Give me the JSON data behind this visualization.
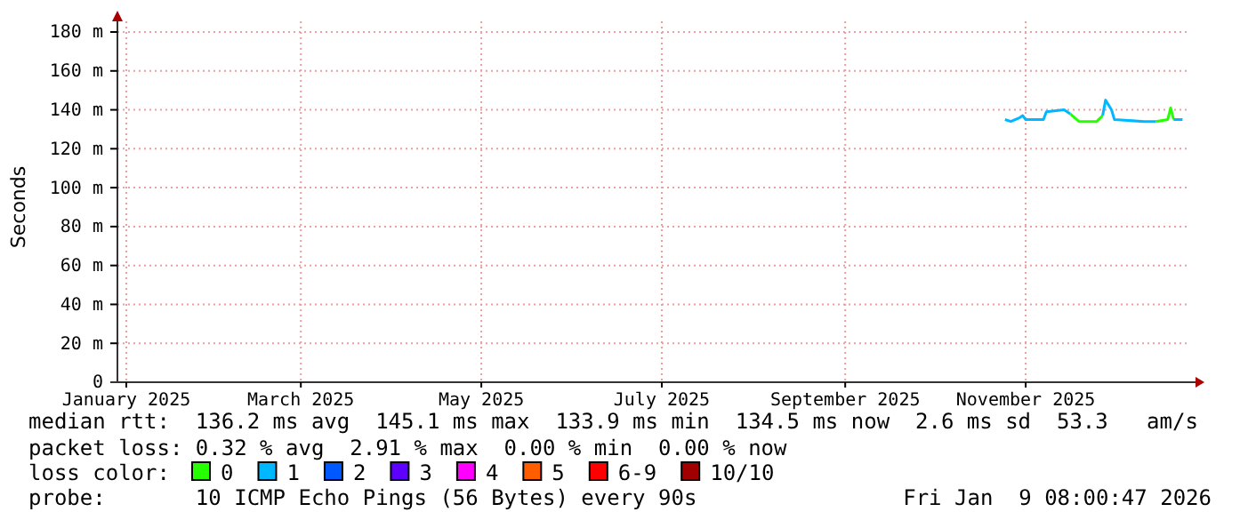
{
  "chart_data": {
    "type": "line",
    "ylabel": "Seconds",
    "x": [
      "2025-10-25",
      "2025-10-27",
      "2025-10-30",
      "2025-10-31",
      "2025-11-01",
      "2025-11-07",
      "2025-11-08",
      "2025-11-14",
      "2025-11-16",
      "2025-11-19",
      "2025-11-25",
      "2025-11-27",
      "2025-11-28",
      "2025-11-30",
      "2025-12-01",
      "2025-12-11",
      "2025-12-15",
      "2025-12-19",
      "2025-12-20",
      "2025-12-21",
      "2025-12-24"
    ],
    "series": [
      {
        "name": "0",
        "color": "#26ff00",
        "values": [
          null,
          null,
          null,
          null,
          null,
          null,
          null,
          null,
          138,
          134,
          134,
          137,
          null,
          null,
          null,
          null,
          134,
          135,
          141,
          135,
          null
        ]
      },
      {
        "name": "1",
        "color": "#00b8ff",
        "values": [
          135,
          134,
          136,
          137,
          135,
          135,
          139,
          140,
          138,
          null,
          null,
          137,
          145,
          140,
          135,
          134,
          134,
          null,
          null,
          135,
          135
        ]
      },
      {
        "name": "2",
        "color": "#0059ff",
        "values": [
          null,
          null,
          null,
          null,
          null,
          null,
          null,
          null,
          null,
          null,
          null,
          null,
          null,
          null,
          null,
          null,
          null,
          null,
          null,
          null,
          null
        ]
      },
      {
        "name": "3",
        "color": "#5e00ff",
        "values": [
          null,
          null,
          null,
          null,
          null,
          null,
          null,
          null,
          null,
          null,
          null,
          null,
          null,
          null,
          null,
          null,
          null,
          null,
          null,
          null,
          null
        ]
      },
      {
        "name": "4",
        "color": "#ff00ff",
        "values": [
          null,
          null,
          null,
          null,
          null,
          null,
          null,
          null,
          null,
          null,
          null,
          null,
          null,
          null,
          null,
          null,
          null,
          null,
          null,
          null,
          null
        ]
      },
      {
        "name": "5",
        "color": "#ff5e00",
        "values": [
          null,
          null,
          null,
          null,
          null,
          null,
          null,
          null,
          null,
          null,
          null,
          null,
          null,
          null,
          null,
          null,
          null,
          null,
          null,
          null,
          null
        ]
      },
      {
        "name": "6-9",
        "color": "#ff0000",
        "values": [
          null,
          null,
          null,
          null,
          null,
          null,
          null,
          null,
          null,
          null,
          null,
          null,
          null,
          null,
          null,
          null,
          null,
          null,
          null,
          null,
          null
        ]
      },
      {
        "name": "10/10",
        "color": "#a10000",
        "values": [
          null,
          null,
          null,
          null,
          null,
          null,
          null,
          null,
          null,
          null,
          null,
          null,
          null,
          null,
          null,
          null,
          null,
          null,
          null,
          null,
          null
        ]
      }
    ],
    "legend_title": "loss color:",
    "legend": "bottom",
    "xlim": [
      "2024-12-29",
      "2025-12-26"
    ],
    "xticks": [
      {
        "value": "2025-01-01",
        "label": "January 2025"
      },
      {
        "value": "2025-03-01",
        "label": "March 2025"
      },
      {
        "value": "2025-05-01",
        "label": "May 2025"
      },
      {
        "value": "2025-07-01",
        "label": "July 2025"
      },
      {
        "value": "2025-09-01",
        "label": "September 2025"
      },
      {
        "value": "2025-11-01",
        "label": "November 2025"
      }
    ],
    "ylim": [
      0,
      180
    ],
    "yticks": [
      0,
      {
        "value": 20,
        "label": "20 m"
      },
      {
        "value": 40,
        "label": "40 m"
      },
      {
        "value": 60,
        "label": "60 m"
      },
      {
        "value": 80,
        "label": "80 m"
      },
      {
        "value": 100,
        "label": "100 m"
      },
      {
        "value": 120,
        "label": "120 m"
      },
      {
        "value": 140,
        "label": "140 m"
      },
      {
        "value": 160,
        "label": "160 m"
      },
      {
        "value": 180,
        "label": "180 m"
      }
    ],
    "grid": true,
    "marker": "none",
    "line_style": "solid",
    "annotations": [
      "median rtt:  136.2 ms avg  145.1 ms max  133.9 ms min  134.5 ms now  2.6 ms sd  53.3   am/s",
      "packet loss: 0.32 % avg  2.91 % max  0.00 % min  0.00 % now",
      "probe:       10 ICMP Echo Pings (56 Bytes) every 90s",
      "Fri Jan  9 08:00:47 2026"
    ]
  }
}
